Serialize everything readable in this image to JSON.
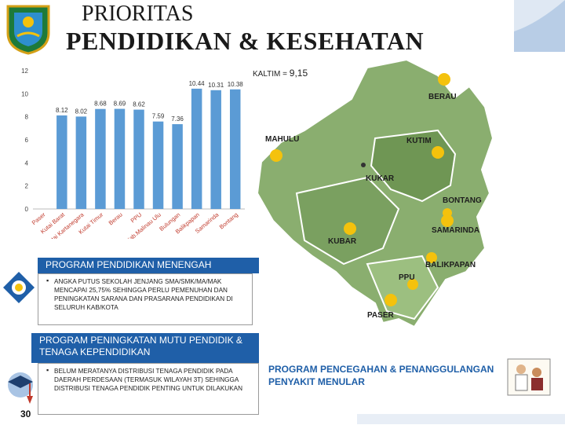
{
  "title": {
    "line1": "PRIORITAS",
    "line2": "PENDIDIKAN & KESEHATAN"
  },
  "kaltim_label": "KALTIM =",
  "kaltim_value": "9,15",
  "chart_data": {
    "type": "bar",
    "categories": [
      "Paser",
      "Kutai Barat",
      "Kutai Kartanegara",
      "Kutai Timur",
      "Berau",
      "PPU",
      "Malinau",
      "Bulungan",
      "Balikpapan",
      "Samarinda",
      "Bontang"
    ],
    "values": [
      null,
      8.12,
      8.02,
      8.68,
      8.69,
      8.62,
      7.59,
      7.36,
      10.44,
      10.31,
      10.38
    ],
    "value_labels": [
      "",
      "8.12",
      "8.02",
      "8.68",
      "8.69",
      "8.62",
      "7.59",
      "7.36",
      "10.44",
      "10.31",
      "10.38"
    ],
    "tick_labels": [
      "Paser",
      "Kutai Barat",
      "Kutai Kartanegara",
      "Kutai Timur",
      "Berau",
      "PPU",
      "Kab.Malinau Ulu",
      "Bulungan",
      "Balikpapan",
      "Samarinda",
      "Bontang"
    ],
    "yticks": [
      "0",
      "2",
      "4",
      "6",
      "8",
      "10",
      "12"
    ],
    "ylim": [
      0,
      12
    ],
    "bar_color": "#5b9bd5",
    "grid": false
  },
  "map_labels": [
    "BERAU",
    "MAHULU",
    "KUTIM",
    "KUKAR",
    "BONTANG",
    "SAMARINDA",
    "KUBAR",
    "BALIKPAPAN",
    "PPU",
    "PASER"
  ],
  "program1": {
    "title": "PROGRAM PENDIDIKAN MENENGAH",
    "bullet": "ANGKA PUTUS SEKOLAH JENJANG SMA/SMK/MA/MAK MENCAPAI 25,75% SEHINGGA PERLU PEMENUHAN DAN PENINGKATAN SARANA DAN PRASARANA PENDIDIKAN DI SELURUH KAB/KOTA"
  },
  "program2": {
    "title": "PROGRAM PENINGKATAN MUTU PENDIDIK & TENAGA KEPENDIDIKAN",
    "bullet": "BELUM MERATANYA DISTRIBUSI TENAGA PENDIDIK PADA DAERAH PERDESAAN (TERMASUK WILAYAH 3T) SEHINGGA DISTRIBUSI TENAGA PENDIDIK PENTING UNTUK DILAKUKAN"
  },
  "program3": {
    "title": "PROGRAM PENCEGAHAN & PENANGGULANGAN PENYAKIT MENULAR"
  },
  "page_number": "30",
  "colors": {
    "banner": "#1f5fa8",
    "map_land": "#8aae6f",
    "map_land_dark": "#6f9654",
    "marker": "#f4c20d",
    "bar": "#5b9bd5"
  }
}
